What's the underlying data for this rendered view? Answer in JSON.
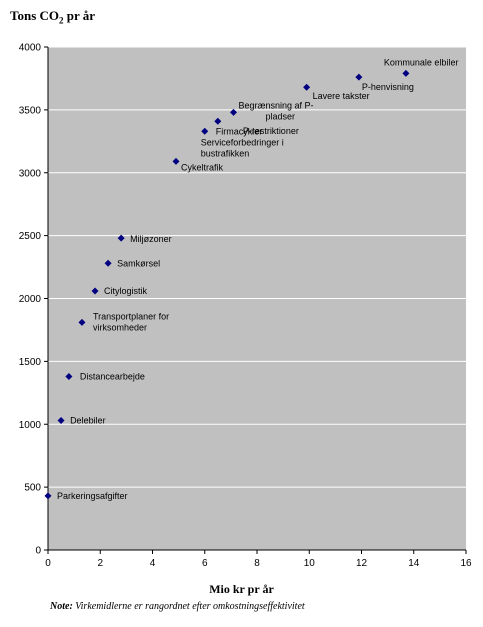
{
  "chart_data": {
    "type": "scatter",
    "ylabel_prefix": "Tons CO",
    "ylabel_sub": "2",
    "ylabel_suffix": " pr år",
    "xlabel": "Mio kr pr år",
    "note_label": "Note:",
    "note_text": " Virkemidlerne er rangordnet efter omkostningseffektivitet",
    "xlim": [
      0,
      16
    ],
    "ylim": [
      0,
      4000
    ],
    "xticks": [
      0,
      2,
      4,
      6,
      8,
      10,
      12,
      14,
      16
    ],
    "yticks": [
      0,
      500,
      1000,
      1500,
      2000,
      2500,
      3000,
      3500,
      4000
    ],
    "grid": true,
    "colors": {
      "plot_bg": "#c0c0c0",
      "marker": "#000080",
      "grid": "#ffffff"
    },
    "points": [
      {
        "x": 0.0,
        "y": 430,
        "label": [
          "Parkeringsafgifter"
        ]
      },
      {
        "x": 0.5,
        "y": 1030,
        "label": [
          "Delebiler"
        ]
      },
      {
        "x": 0.8,
        "y": 1380,
        "label": [
          "Distancearbejde"
        ]
      },
      {
        "x": 1.3,
        "y": 1810,
        "label": [
          "Transportplaner for",
          "virksomheder"
        ]
      },
      {
        "x": 1.8,
        "y": 2060,
        "label": [
          "Citylogistik"
        ]
      },
      {
        "x": 2.3,
        "y": 2280,
        "label": [
          "Samkørsel"
        ]
      },
      {
        "x": 2.8,
        "y": 2480,
        "label": [
          "Miljøzoner"
        ]
      },
      {
        "x": 4.9,
        "y": 3090,
        "label": [
          "Cykeltrafik"
        ]
      },
      {
        "x": 6.0,
        "y": 3330,
        "label": [
          "Firmacykler",
          "Serviceforbedringer i",
          "bustrafikken"
        ]
      },
      {
        "x": 6.5,
        "y": 3410,
        "label": [
          "P-restriktioner"
        ]
      },
      {
        "x": 7.1,
        "y": 3480,
        "label": [
          "Begrænsning af P-",
          "pladser"
        ]
      },
      {
        "x": 9.9,
        "y": 3680,
        "label": [
          "Lavere takster"
        ]
      },
      {
        "x": 11.9,
        "y": 3760,
        "label": [
          "P-henvisning"
        ]
      },
      {
        "x": 13.7,
        "y": 3790,
        "label": [
          "Kommunale elbiler"
        ]
      }
    ]
  }
}
